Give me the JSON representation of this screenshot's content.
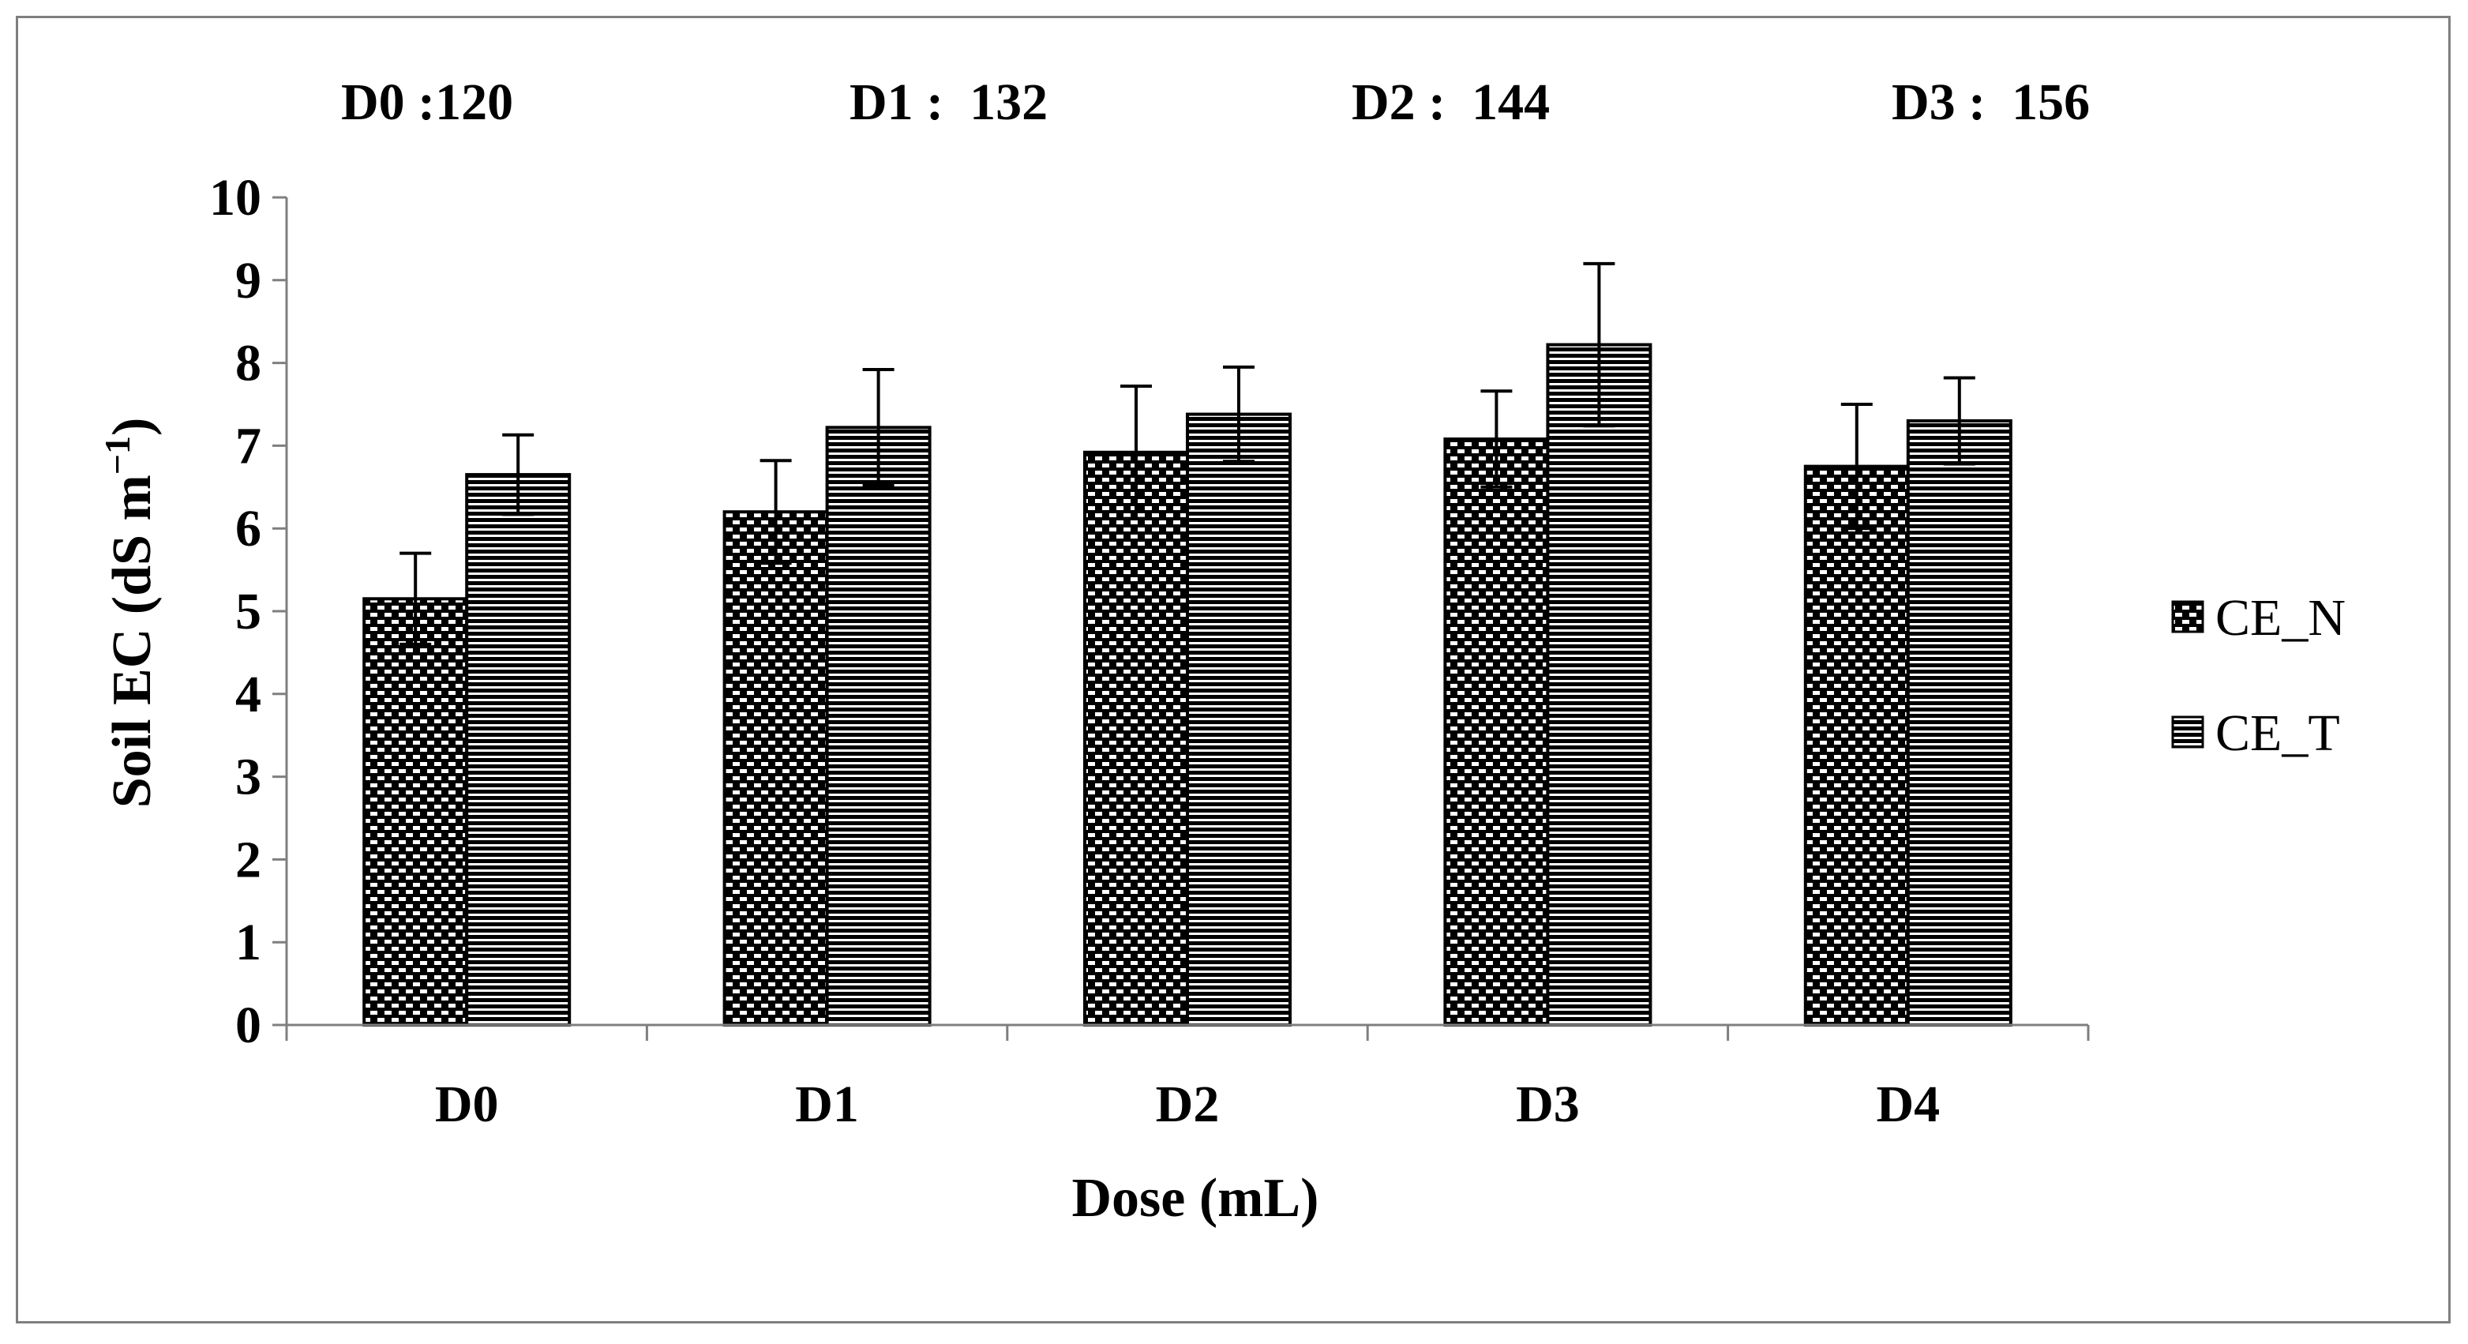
{
  "chart_data": {
    "type": "bar",
    "title": "",
    "xlabel": "Dose (mL)",
    "ylabel": "Soil EC (dS m−1)",
    "ylabel_parts": {
      "main": "Soil EC (dS m",
      "sup": "−1",
      "close": ")"
    },
    "categories": [
      "D0",
      "D1",
      "D2",
      "D3",
      "D4"
    ],
    "ylim": [
      0,
      10
    ],
    "yticks": [
      "0",
      "1",
      "2",
      "3",
      "4",
      "5",
      "6",
      "7",
      "8",
      "9",
      "10"
    ],
    "series": [
      {
        "name": "CE_N",
        "values": [
          5.15,
          6.2,
          6.92,
          7.08,
          6.75
        ],
        "errors": [
          0.55,
          0.62,
          0.8,
          0.58,
          0.75
        ],
        "pattern": "dots"
      },
      {
        "name": "CE_T",
        "values": [
          6.65,
          7.22,
          7.38,
          8.22,
          7.3
        ],
        "errors": [
          0.48,
          0.7,
          0.57,
          0.98,
          0.52
        ],
        "pattern": "hlines"
      }
    ],
    "annotations": [
      "D0 :120",
      "D1 :  132",
      "D2 :  144",
      "D3 :  156"
    ],
    "legend_position": "right",
    "grid": false
  }
}
